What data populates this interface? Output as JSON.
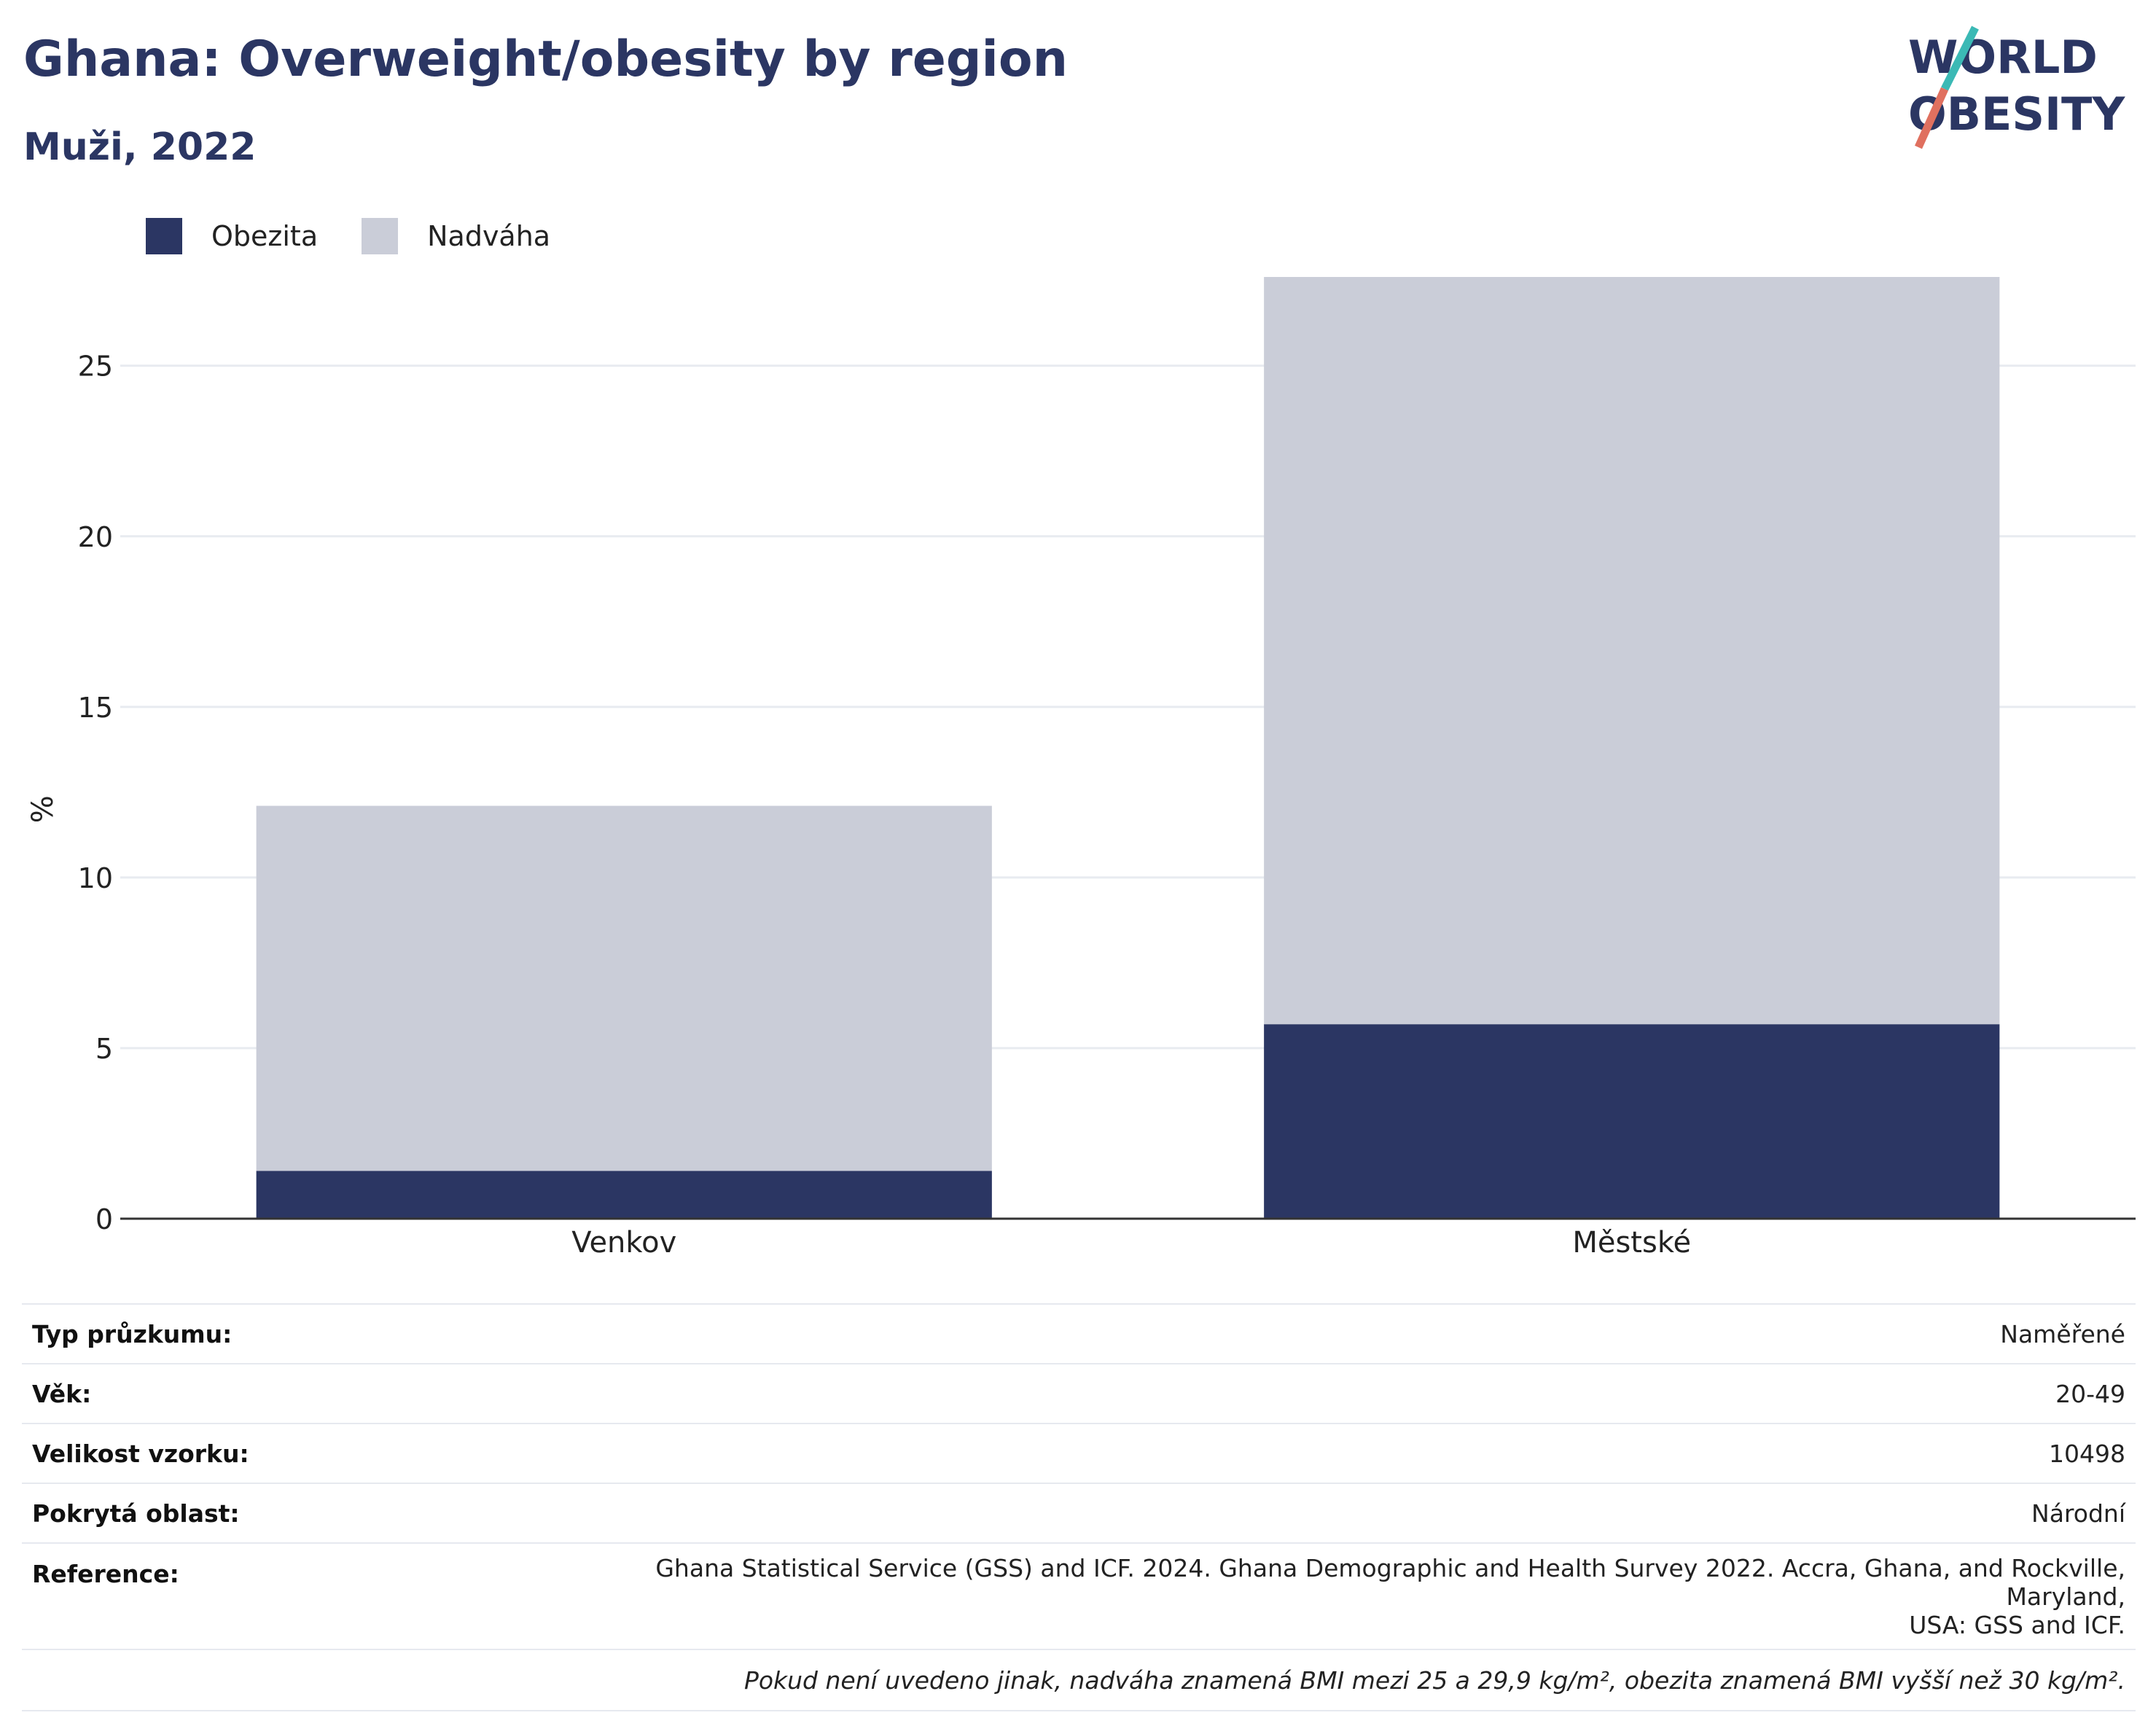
{
  "header": {
    "title": "Ghana: Overweight/obesity by region",
    "subtitle": "Muži, 2022"
  },
  "logo": {
    "line1": "WORLD",
    "line2": "OBESITY"
  },
  "legend": [
    {
      "label": "Obezita",
      "color": "#2b3663"
    },
    {
      "label": "Nadváha",
      "color": "#cacdd8"
    }
  ],
  "chart_data": {
    "type": "bar",
    "stacked": true,
    "categories": [
      "Venkov",
      "Městské"
    ],
    "series": [
      {
        "name": "Obezita",
        "color": "#2b3663",
        "values": [
          1.4,
          5.7
        ]
      },
      {
        "name": "Nadváha",
        "color": "#cacdd8",
        "values": [
          10.7,
          21.9
        ]
      }
    ],
    "ylabel": "%",
    "ylim": [
      0,
      27.6
    ],
    "yticks": [
      0,
      5,
      10,
      15,
      20,
      25
    ],
    "grid": true,
    "legend_position": "top-left"
  },
  "info": {
    "survey_type_label": "Typ průzkumu:",
    "survey_type_value": "Naměřené",
    "age_label": "Věk:",
    "age_value": "20-49",
    "sample_label": "Velikost vzorku:",
    "sample_value": "10498",
    "area_label": "Pokrytá oblast:",
    "area_value": "Národní",
    "reference_label": "Reference:",
    "reference_value_line1": "Ghana Statistical Service (GSS) and ICF. 2024. Ghana Demographic and Health Survey 2022. Accra, Ghana, and Rockville, Maryland,",
    "reference_value_line2": "USA: GSS and ICF.",
    "note": "Pokud není uvedeno jinak, nadváha znamená BMI mezi 25 a 29,9 kg/m², obezita znamená BMI vyšší než 30 kg/m²."
  }
}
